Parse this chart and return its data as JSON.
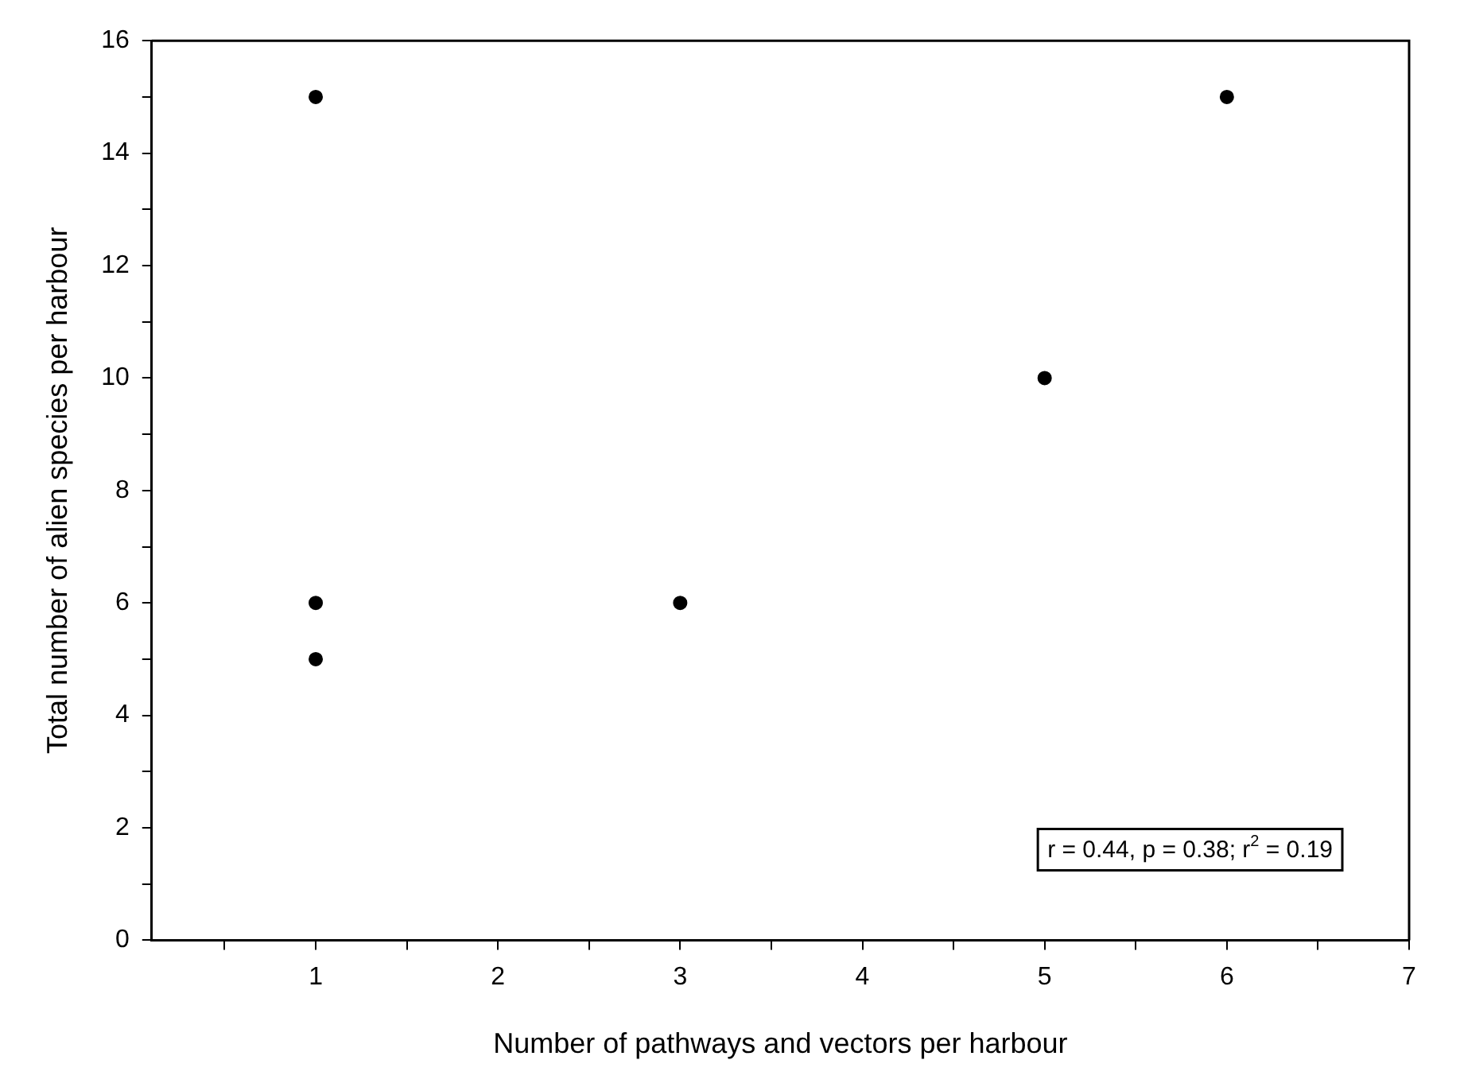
{
  "chart_data": {
    "type": "scatter",
    "xlabel": "Number of pathways and vectors per harbour",
    "ylabel": "Total number of alien species per harbour",
    "x": [
      1,
      1,
      1,
      3,
      5,
      6
    ],
    "values": [
      15,
      6,
      5,
      6,
      10,
      15
    ],
    "color": "#000000",
    "marker": "circle",
    "grid": false,
    "legend": false,
    "xlim": [
      0.1,
      7
    ],
    "xticks": [
      {
        "value": 0.5,
        "label": null
      },
      1,
      {
        "value": 1.5,
        "label": null
      },
      2,
      {
        "value": 2.5,
        "label": null
      },
      3,
      {
        "value": 3.5,
        "label": null
      },
      4,
      {
        "value": 4.5,
        "label": null
      },
      5,
      {
        "value": 5.5,
        "label": null
      },
      6,
      {
        "value": 6.5,
        "label": null
      },
      7
    ],
    "ylim": [
      0,
      16
    ],
    "yticks": [
      0,
      {
        "value": 1,
        "label": null
      },
      2,
      {
        "value": 3,
        "label": null
      },
      4,
      {
        "value": 5,
        "label": null
      },
      6,
      {
        "value": 7,
        "label": null
      },
      8,
      {
        "value": 9,
        "label": null
      },
      10,
      {
        "value": 11,
        "label": null
      },
      12,
      {
        "value": 13,
        "label": null
      },
      14,
      {
        "value": 15,
        "label": null
      },
      16
    ],
    "annotations": [
      "r = 0.44, p = 0.38; r$^{2}$ = 0.19"
    ]
  }
}
